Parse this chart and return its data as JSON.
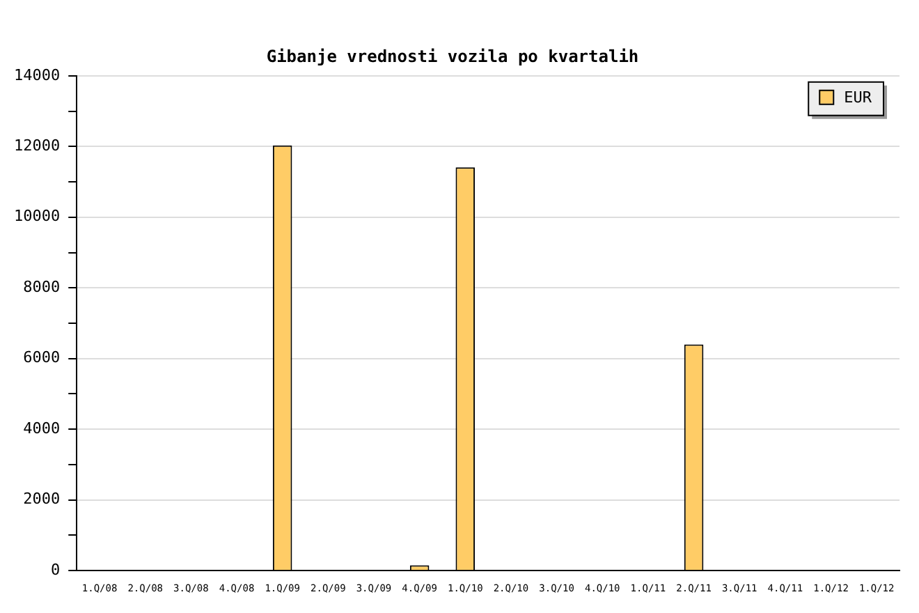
{
  "chart_data": {
    "type": "bar",
    "title": "Gibanje vrednosti vozila po kvartalih",
    "categories": [
      "1.Q/08",
      "2.Q/08",
      "3.Q/08",
      "4.Q/08",
      "1.Q/09",
      "2.Q/09",
      "3.Q/09",
      "4.Q/09",
      "1.Q/10",
      "2.Q/10",
      "3.Q/10",
      "4.Q/10",
      "1.Q/11",
      "2.Q/11",
      "3.Q/11",
      "4.Q/11",
      "1.Q/12",
      "1.Q/12"
    ],
    "series": [
      {
        "name": "EUR",
        "color": "#ffcc66",
        "values": [
          0,
          0,
          0,
          0,
          12030,
          0,
          0,
          150,
          11410,
          0,
          0,
          0,
          0,
          6400,
          0,
          0,
          0,
          0
        ]
      }
    ],
    "ylim": [
      0,
      14000
    ],
    "yticks": [
      0,
      {
        "value": 1000,
        "label": null
      },
      2000,
      {
        "value": 3000,
        "label": null
      },
      4000,
      {
        "value": 5000,
        "label": null
      },
      6000,
      {
        "value": 7000,
        "label": null
      },
      8000,
      {
        "value": 9000,
        "label": null
      },
      10000,
      {
        "value": 11000,
        "label": null
      },
      12000,
      {
        "value": 13000,
        "label": null
      },
      14000
    ],
    "grid": "y",
    "legend": "top right"
  }
}
